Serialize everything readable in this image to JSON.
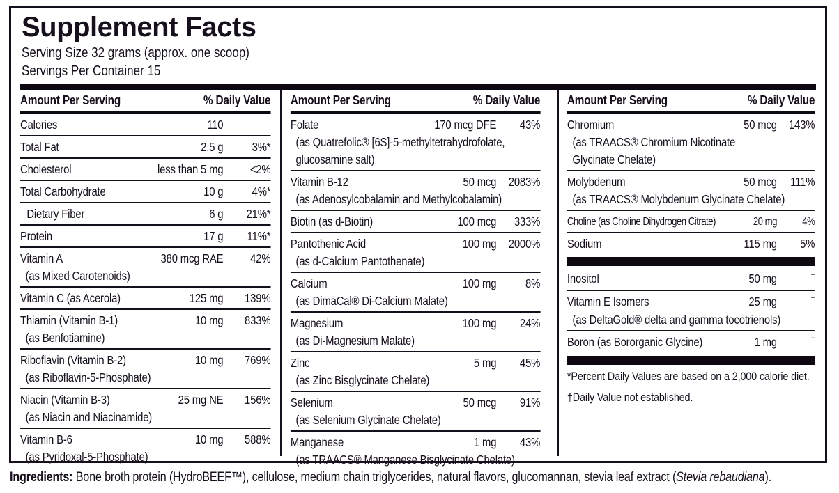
{
  "title": "Supplement Facts",
  "serving": {
    "size_line": "Serving Size 32 grams (approx. one scoop)",
    "container_line": "Servings Per Container 15"
  },
  "colors": {
    "text": "#160f1c",
    "bar": "#0d0812",
    "background": "#ffffff"
  },
  "columns": [
    {
      "header": {
        "amount": "Amount Per Serving",
        "dv": "% Daily Value"
      },
      "rows": [
        {
          "name": "Calories",
          "amount": "110",
          "dv": ""
        },
        {
          "name": "Total Fat",
          "amount": "2.5 g",
          "dv": "3%*"
        },
        {
          "name": "Cholesterol",
          "amount": "less than 5 mg",
          "dv": "<2%"
        },
        {
          "name": "Total Carbohydrate",
          "amount": "10 g",
          "dv": "4%*"
        },
        {
          "name": "Dietary Fiber",
          "amount": "6 g",
          "dv": "21%*",
          "indent": true
        },
        {
          "name": "Protein",
          "amount": "17 g",
          "dv": "11%*"
        },
        {
          "name": "Vitamin A",
          "amount": "380 mcg RAE",
          "dv": "42%",
          "sub": [
            "(as Mixed Carotenoids)"
          ]
        },
        {
          "name": "Vitamin C (as Acerola)",
          "amount": "125 mg",
          "dv": "139%"
        },
        {
          "name": "Thiamin (Vitamin B-1)",
          "amount": "10 mg",
          "dv": "833%",
          "sub": [
            "(as Benfotiamine)"
          ]
        },
        {
          "name": "Riboflavin (Vitamin B-2)",
          "amount": "10 mg",
          "dv": "769%",
          "sub": [
            "(as Riboflavin-5-Phosphate)"
          ]
        },
        {
          "name": "Niacin (Vitamin B-3)",
          "amount": "25 mg NE",
          "dv": "156%",
          "sub": [
            "(as Niacin and Niacinamide)"
          ]
        },
        {
          "name": "Vitamin B-6",
          "amount": "10 mg",
          "dv": "588%",
          "sub": [
            "(as Pyridoxal-5-Phosphate)"
          ],
          "noline": true
        }
      ]
    },
    {
      "header": {
        "amount": "Amount Per Serving",
        "dv": "% Daily Value"
      },
      "rows": [
        {
          "name": "Folate",
          "amount": "170 mcg DFE",
          "dv": "43%",
          "sub": [
            "(as Quatrefolic® [6S]-5-methyltetrahydrofolate,",
            "glucosamine salt)"
          ]
        },
        {
          "name": "Vitamin B-12",
          "amount": "50 mcg",
          "dv": "2083%",
          "sub": [
            "(as Adenosylcobalamin and Methylcobalamin)"
          ]
        },
        {
          "name": "Biotin (as d-Biotin)",
          "amount": "100 mcg",
          "dv": "333%"
        },
        {
          "name": "Pantothenic Acid",
          "amount": "100 mg",
          "dv": "2000%",
          "sub": [
            "(as d-Calcium Pantothenate)"
          ]
        },
        {
          "name": "Calcium",
          "amount": "100 mg",
          "dv": "8%",
          "sub": [
            "(as DimaCal® Di-Calcium Malate)"
          ]
        },
        {
          "name": "Magnesium",
          "amount": "100 mg",
          "dv": "24%",
          "sub": [
            "(as Di-Magnesium Malate)"
          ]
        },
        {
          "name": "Zinc",
          "amount": "5 mg",
          "dv": "45%",
          "sub": [
            "(as Zinc Bisglycinate Chelate)"
          ]
        },
        {
          "name": "Selenium",
          "amount": "50 mcg",
          "dv": "91%",
          "sub": [
            "(as Selenium Glycinate Chelate)"
          ]
        },
        {
          "name": "Manganese",
          "amount": "1 mg",
          "dv": "43%",
          "sub": [
            "(as TRAACS® Manganese Bisglycinate Chelate)"
          ],
          "noline": true
        }
      ]
    },
    {
      "header": {
        "amount": "Amount Per Serving",
        "dv": "% Daily Value"
      },
      "rows": [
        {
          "name": "Chromium",
          "amount": "50 mcg",
          "dv": "143%",
          "sub": [
            "(as TRAACS® Chromium Nicotinate",
            "Glycinate Chelate)"
          ]
        },
        {
          "name": "Molybdenum",
          "amount": "50 mcg",
          "dv": "111%",
          "sub": [
            "(as TRAACS® Molybdenum Glycinate Chelate)"
          ]
        },
        {
          "name": "Choline (as Choline Dihydrogen Citrate)",
          "amount": "20 mg",
          "dv": "4%",
          "small": true
        },
        {
          "name": "Sodium",
          "amount": "115 mg",
          "dv": "5%",
          "noline": true
        },
        {
          "type": "bar"
        },
        {
          "name": "Inositol",
          "amount": "50 mg",
          "dv": "†",
          "dagger": true
        },
        {
          "name": "Vitamin E Isomers",
          "amount": "25 mg",
          "dv": "†",
          "dagger": true,
          "sub": [
            "(as DeltaGold® delta and gamma tocotrienols)"
          ]
        },
        {
          "name": "Boron (as Bororganic Glycine)",
          "amount": "1 mg",
          "dv": "†",
          "dagger": true,
          "noline": true
        },
        {
          "type": "bar"
        },
        {
          "type": "note",
          "text": "*Percent Daily Values are based on a 2,000 calorie diet."
        },
        {
          "type": "note",
          "text": "†Daily Value not established."
        }
      ]
    }
  ],
  "ingredients": {
    "label": "Ingredients:",
    "text": " Bone broth protein (HydroBEEF™), cellulose, medium chain triglycerides, natural flavors, glucomannan, stevia leaf extract (",
    "italic": "Stevia rebaudiana",
    "suffix": ")."
  }
}
